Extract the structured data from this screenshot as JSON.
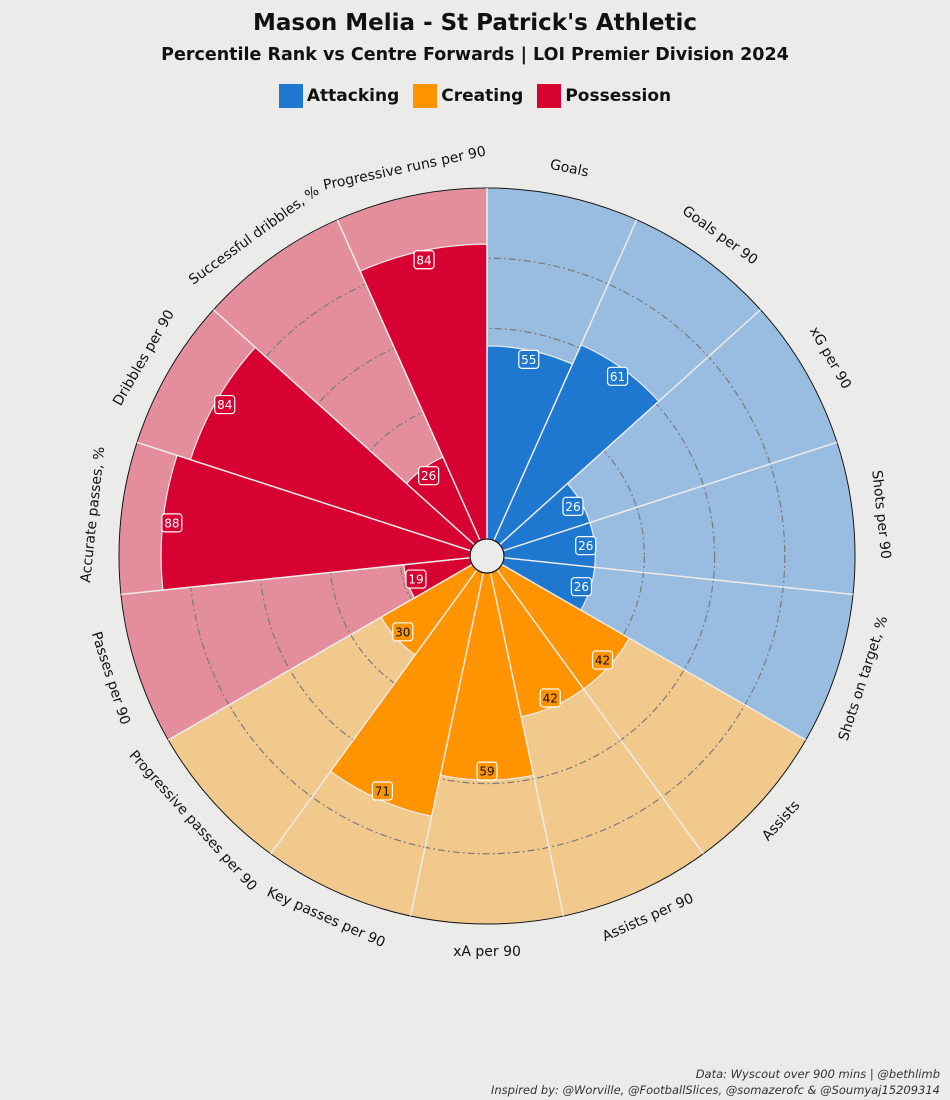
{
  "title": "Mason Melia - St Patrick's Athletic",
  "subtitle": "Percentile Rank vs Centre Forwards | LOI Premier Division 2024",
  "legend": [
    {
      "label": "Attacking",
      "color": "#1f78d0"
    },
    {
      "label": "Creating",
      "color": "#ff9300"
    },
    {
      "label": "Possession",
      "color": "#d70232"
    }
  ],
  "chart_data": {
    "type": "pizza",
    "range": [
      0,
      100
    ],
    "params": [
      {
        "label": "Goals",
        "value": 55,
        "group": "Attacking"
      },
      {
        "label": "Goals per 90",
        "value": 61,
        "group": "Attacking"
      },
      {
        "label": "xG per 90",
        "value": 26,
        "group": "Attacking"
      },
      {
        "label": "Shots per 90",
        "value": 26,
        "group": "Attacking"
      },
      {
        "label": "Shots on target, %",
        "value": 26,
        "group": "Attacking"
      },
      {
        "label": "Assists",
        "value": 42,
        "group": "Creating"
      },
      {
        "label": "Assists per 90",
        "value": 42,
        "group": "Creating"
      },
      {
        "label": "xA per 90",
        "value": 59,
        "group": "Creating"
      },
      {
        "label": "Key passes per 90",
        "value": 71,
        "group": "Creating"
      },
      {
        "label": "Progressive passes per 90",
        "value": 30,
        "group": "Creating"
      },
      {
        "label": "Passes per 90",
        "value": 19,
        "group": "Possession"
      },
      {
        "label": "Accurate passes, %",
        "value": 88,
        "group": "Possession"
      },
      {
        "label": "Dribbles per 90",
        "value": 84,
        "group": "Possession"
      },
      {
        "label": "Successful dribbles, %",
        "value": 26,
        "group": "Possession"
      },
      {
        "label": "Progressive runs per 90",
        "value": 84,
        "group": "Possession"
      }
    ],
    "group_colors": {
      "Attacking": {
        "slice": "#1f78d0",
        "background": "#98bde0"
      },
      "Creating": {
        "slice": "#ff9300",
        "background": "#f2c98d"
      },
      "Possession": {
        "slice": "#d70232",
        "background": "#e48d9c"
      }
    }
  },
  "footer": {
    "line1": "Data: Wyscout over 900 mins | @bethlimb",
    "line2": "Inspired by: @Worville, @FootballSlices, @somazerofc & @Soumyaj15209314"
  }
}
